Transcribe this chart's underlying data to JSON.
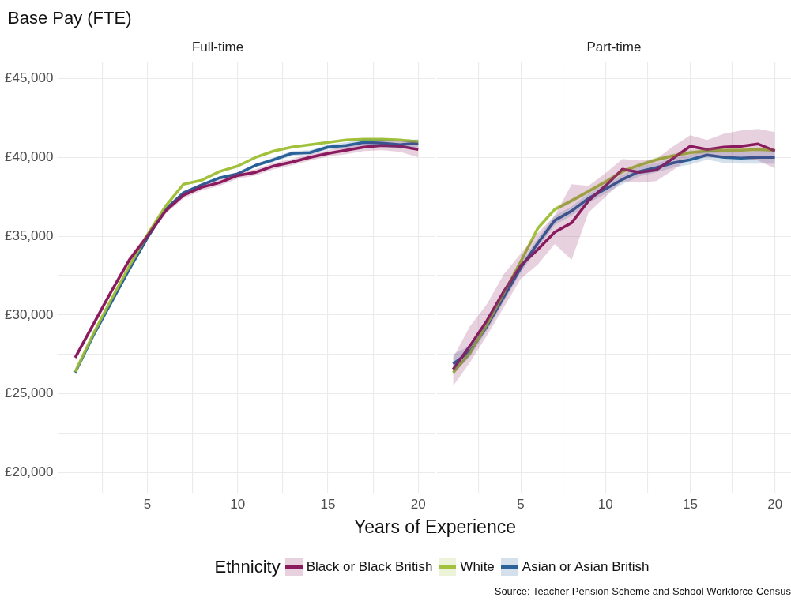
{
  "chart_data": [
    {
      "type": "line",
      "title": "Base Pay (FTE)",
      "subtitle": "Full-time",
      "xlabel": "Years of Experience",
      "legend_title": "Ethnicity",
      "legend": "bottom",
      "grid": true,
      "line_style": "solid",
      "marker": "none",
      "annotations": [
        "Source: Teacher Pension Scheme and School Workforce Census"
      ],
      "x": [
        1,
        2,
        3,
        4,
        5,
        6,
        7,
        8,
        9,
        10,
        11,
        12,
        13,
        14,
        15,
        16,
        17,
        18,
        19,
        20
      ],
      "xlim": [
        0.05,
        20.95
      ],
      "xticks": [
        {
          "value": 2.5,
          "label": null
        },
        5,
        {
          "value": 7.5,
          "label": null
        },
        10,
        {
          "value": 12.5,
          "label": null
        },
        15,
        {
          "value": 17.5,
          "label": null
        },
        20
      ],
      "ylim": [
        18750,
        46050
      ],
      "yticks": [
        {
          "value": 20000,
          "label": "£20,000"
        },
        {
          "value": 22500,
          "label": null
        },
        {
          "value": 25000,
          "label": "£25,000"
        },
        {
          "value": 27500,
          "label": null
        },
        {
          "value": 30000,
          "label": "£30,000"
        },
        {
          "value": 32500,
          "label": null
        },
        {
          "value": 35000,
          "label": "£35,000"
        },
        {
          "value": 37500,
          "label": null
        },
        {
          "value": 40000,
          "label": "£40,000"
        },
        {
          "value": 42500,
          "label": null
        },
        {
          "value": 45000,
          "label": "£45,000"
        }
      ],
      "series": [
        {
          "name": "Black or Black British",
          "color": "#8b1a5e",
          "values": [
            27300,
            29400,
            31500,
            33500,
            35000,
            36600,
            37600,
            38100,
            38400,
            38850,
            39050,
            39450,
            39700,
            40000,
            40250,
            40450,
            40650,
            40750,
            40700,
            40500
          ],
          "lower": [
            27100,
            29200,
            31300,
            33300,
            34800,
            36400,
            37400,
            37900,
            38200,
            38650,
            38850,
            39250,
            39500,
            39800,
            40050,
            40200,
            40400,
            40450,
            40350,
            40000
          ],
          "upper": [
            27500,
            29600,
            31700,
            33700,
            35200,
            36800,
            37800,
            38300,
            38600,
            39050,
            39250,
            39650,
            39900,
            40200,
            40450,
            40700,
            40900,
            41050,
            41050,
            41000
          ]
        },
        {
          "name": "White",
          "color": "#a2c13c",
          "values": [
            26400,
            28800,
            31000,
            33100,
            35100,
            36900,
            38300,
            38550,
            39100,
            39450,
            40000,
            40400,
            40650,
            40800,
            40950,
            41100,
            41150,
            41150,
            41100,
            41000
          ],
          "lower": [
            26350,
            28750,
            30950,
            33050,
            35050,
            36850,
            38250,
            38500,
            39050,
            39400,
            39950,
            40350,
            40600,
            40750,
            40900,
            41050,
            41100,
            41100,
            41050,
            40900
          ],
          "upper": [
            26450,
            28850,
            31050,
            33150,
            35150,
            36950,
            38350,
            38600,
            39150,
            39500,
            40050,
            40450,
            40700,
            40850,
            41000,
            41150,
            41200,
            41200,
            41150,
            41100
          ]
        },
        {
          "name": "Asian or Asian British",
          "color": "#2a6299",
          "values": [
            26350,
            28700,
            30800,
            32900,
            34900,
            36700,
            37750,
            38250,
            38700,
            38950,
            39500,
            39850,
            40250,
            40300,
            40650,
            40750,
            40950,
            40900,
            40800,
            40900
          ],
          "lower": [
            26250,
            28600,
            30700,
            32800,
            34800,
            36600,
            37650,
            38150,
            38600,
            38850,
            39400,
            39700,
            40100,
            40150,
            40500,
            40550,
            40750,
            40650,
            40550,
            40650
          ],
          "upper": [
            26450,
            28800,
            30900,
            33000,
            35000,
            36800,
            37850,
            38350,
            38800,
            39050,
            39600,
            40000,
            40400,
            40450,
            40800,
            40950,
            41150,
            41150,
            41050,
            41150
          ]
        }
      ]
    },
    {
      "type": "line",
      "subtitle": "Part-time",
      "grid": true,
      "line_style": "solid",
      "marker": "none",
      "tick_labels": "x",
      "legend": false,
      "x": [
        1,
        2,
        3,
        4,
        5,
        6,
        7,
        8,
        9,
        10,
        11,
        12,
        13,
        14,
        15,
        16,
        17,
        18,
        19,
        20
      ],
      "xlim": [
        0.05,
        20.95
      ],
      "xticks": [
        {
          "value": 2.5,
          "label": null
        },
        5,
        {
          "value": 7.5,
          "label": null
        },
        10,
        {
          "value": 12.5,
          "label": null
        },
        15,
        {
          "value": 17.5,
          "label": null
        },
        20
      ],
      "ylim": [
        18750,
        46050
      ],
      "yticks": [
        20000,
        22500,
        25000,
        27500,
        30000,
        32500,
        35000,
        37500,
        40000,
        42500,
        45000
      ],
      "series": [
        {
          "color": "#8b1a5e",
          "values": [
            26550,
            28050,
            29650,
            31500,
            33150,
            34150,
            35250,
            35850,
            37250,
            38200,
            39250,
            39050,
            39200,
            39950,
            40700,
            40500,
            40650,
            40700,
            40850,
            40400
          ],
          "lower": [
            25500,
            27000,
            28700,
            30500,
            32300,
            33200,
            34500,
            33500,
            36500,
            37500,
            38500,
            38400,
            38500,
            39200,
            40000,
            40000,
            40000,
            40000,
            39800,
            39300
          ],
          "upper": [
            27300,
            29300,
            30700,
            32600,
            33900,
            35200,
            36300,
            38300,
            38200,
            39000,
            39900,
            39800,
            39900,
            40700,
            41400,
            41100,
            41500,
            41700,
            41800,
            41600
          ]
        },
        {
          "color": "#a2c13c",
          "values": [
            26350,
            27600,
            29400,
            31400,
            33400,
            35500,
            36700,
            37250,
            37850,
            38450,
            39100,
            39500,
            39850,
            40100,
            40300,
            40400,
            40450,
            40450,
            40500,
            40450
          ],
          "lower": [
            26150,
            27450,
            29250,
            31250,
            33250,
            35350,
            36550,
            37100,
            37700,
            38300,
            38950,
            39350,
            39700,
            39950,
            40150,
            40250,
            40300,
            40300,
            40350,
            40300
          ],
          "upper": [
            26550,
            27750,
            29550,
            31550,
            33550,
            35650,
            36850,
            37400,
            38000,
            38600,
            39250,
            39650,
            40000,
            40250,
            40450,
            40550,
            40600,
            40600,
            40650,
            40600
          ]
        },
        {
          "color": "#2a6299",
          "values": [
            26900,
            27700,
            29300,
            31150,
            33000,
            34550,
            36000,
            36600,
            37400,
            38000,
            38600,
            39100,
            39350,
            39650,
            39850,
            40150,
            40000,
            39950,
            40000,
            40000
          ],
          "lower": [
            26300,
            27350,
            29000,
            30850,
            32700,
            34250,
            35700,
            36300,
            37100,
            37700,
            38300,
            38800,
            39050,
            39350,
            39550,
            39850,
            39650,
            39600,
            39600,
            39600
          ],
          "upper": [
            27500,
            28050,
            29600,
            31450,
            33300,
            34850,
            36300,
            36900,
            37700,
            38300,
            38900,
            39400,
            39650,
            39950,
            40150,
            40450,
            40350,
            40300,
            40400,
            40400
          ]
        }
      ]
    }
  ]
}
